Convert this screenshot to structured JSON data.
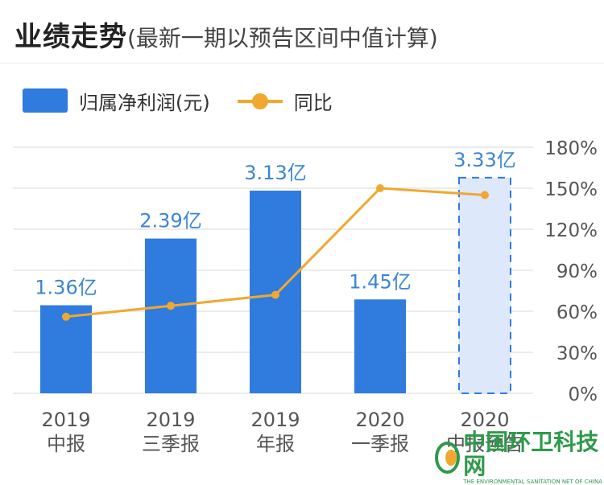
{
  "header": {
    "title": "业绩走势",
    "subtitle": "(最新一期以预告区间中值计算)"
  },
  "legend": {
    "bar_label": "归属净利润(元)",
    "line_label": "同比"
  },
  "colors": {
    "bar": "#2f7bde",
    "forecast_fill": "#dde8fb",
    "forecast_border": "#2f7bde",
    "line": "#f0a830",
    "value_label": "#3a86d4",
    "tick": "#555555",
    "grid": "#e6e6e6"
  },
  "chart_data": {
    "type": "bar",
    "title": "业绩走势",
    "subtitle": "(最新一期以预告区间中值计算)",
    "categories": [
      [
        "2019",
        "中报"
      ],
      [
        "2019",
        "三季报"
      ],
      [
        "2019",
        "年报"
      ],
      [
        "2020",
        "一季报"
      ],
      [
        "2020",
        "中报预告"
      ]
    ],
    "series": [
      {
        "name": "归属净利润(元)",
        "type": "bar",
        "values": [
          1.36,
          2.39,
          3.13,
          1.45,
          3.33
        ],
        "value_labels": [
          "1.36亿",
          "2.39亿",
          "3.13亿",
          "1.45亿",
          "3.33亿"
        ],
        "forecast_index": 4
      },
      {
        "name": "同比",
        "type": "line",
        "axis": "right",
        "values": [
          56,
          64,
          72,
          150,
          145
        ]
      }
    ],
    "y2_ticks": [
      "0%",
      "30%",
      "60%",
      "90%",
      "120%",
      "150%",
      "180%"
    ],
    "y2lim": [
      0,
      180
    ],
    "grid": true,
    "legend_position": "top-left"
  },
  "watermark": {
    "name_cn": "中国环卫科技网",
    "name_en": "THE ENVIRONMENTAL SANITATION NET OF CHINA"
  }
}
